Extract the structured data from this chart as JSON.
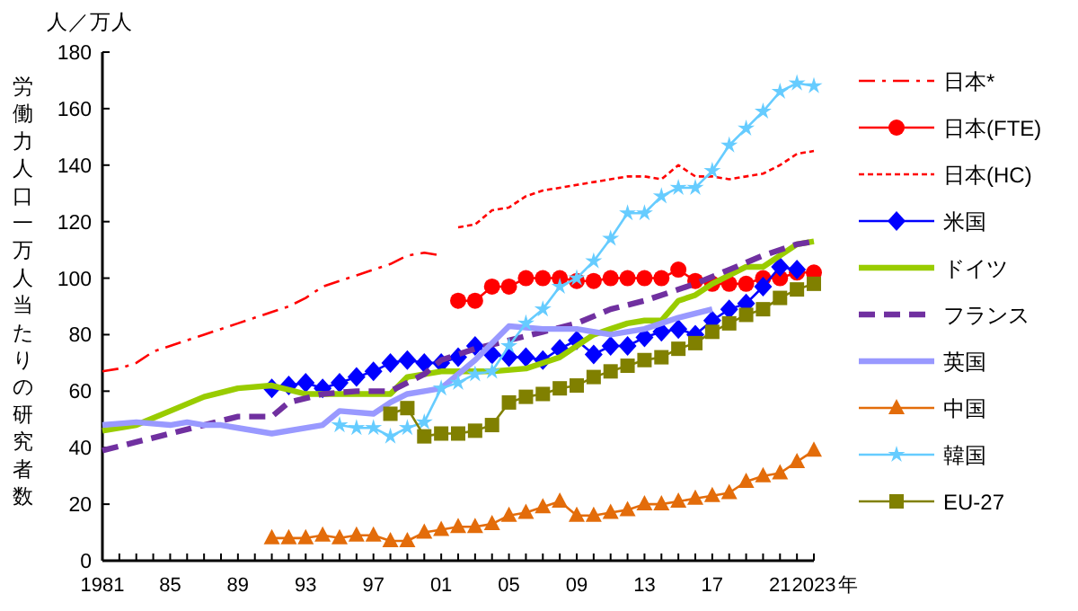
{
  "chart_data": {
    "type": "line",
    "ylabel": "労働力人口一万人当たりの研究者数",
    "annotations": [
      "人／万人"
    ],
    "xlim": [
      1981,
      2023
    ],
    "ylim": [
      0,
      180
    ],
    "yticks": [
      0,
      20,
      40,
      60,
      80,
      100,
      120,
      140,
      160,
      180
    ],
    "xticks": [
      1981,
      {
        "value": 1982,
        "label": null
      },
      {
        "value": 1983,
        "label": null
      },
      {
        "value": 1984,
        "label": null
      },
      {
        "value": 1985,
        "label": "85"
      },
      {
        "value": 1986,
        "label": null
      },
      {
        "value": 1987,
        "label": null
      },
      {
        "value": 1988,
        "label": null
      },
      {
        "value": 1989,
        "label": "89"
      },
      {
        "value": 1990,
        "label": null
      },
      {
        "value": 1991,
        "label": null
      },
      {
        "value": 1992,
        "label": null
      },
      {
        "value": 1993,
        "label": "93"
      },
      {
        "value": 1994,
        "label": null
      },
      {
        "value": 1995,
        "label": null
      },
      {
        "value": 1996,
        "label": null
      },
      {
        "value": 1997,
        "label": "97"
      },
      {
        "value": 1998,
        "label": null
      },
      {
        "value": 1999,
        "label": null
      },
      {
        "value": 2000,
        "label": null
      },
      {
        "value": 2001,
        "label": "01"
      },
      {
        "value": 2002,
        "label": null
      },
      {
        "value": 2003,
        "label": null
      },
      {
        "value": 2004,
        "label": null
      },
      {
        "value": 2005,
        "label": "05"
      },
      {
        "value": 2006,
        "label": null
      },
      {
        "value": 2007,
        "label": null
      },
      {
        "value": 2008,
        "label": null
      },
      {
        "value": 2009,
        "label": "09"
      },
      {
        "value": 2010,
        "label": null
      },
      {
        "value": 2011,
        "label": null
      },
      {
        "value": 2012,
        "label": null
      },
      {
        "value": 2013,
        "label": "13"
      },
      {
        "value": 2014,
        "label": null
      },
      {
        "value": 2015,
        "label": null
      },
      {
        "value": 2016,
        "label": null
      },
      {
        "value": 2017,
        "label": "17"
      },
      {
        "value": 2018,
        "label": null
      },
      {
        "value": 2019,
        "label": null
      },
      {
        "value": 2020,
        "label": null
      },
      {
        "value": 2021,
        "label": "21"
      },
      {
        "value": 2022,
        "label": null
      },
      2023
    ],
    "xlabel": "年",
    "grid": false,
    "legend": "right",
    "series": [
      {
        "name": "日本*",
        "color": "#ff0000",
        "marker": "none",
        "line_style": "dashdot",
        "x": [
          1981,
          1982,
          1983,
          1984,
          1985,
          1986,
          1987,
          1988,
          1989,
          1990,
          1991,
          1992,
          1993,
          1994,
          1995,
          1996,
          1997,
          1998,
          1999,
          2000,
          2001
        ],
        "values": [
          67,
          68,
          70,
          74,
          76,
          78,
          80,
          82,
          84,
          86,
          88,
          90,
          93,
          97,
          99,
          101,
          103,
          105,
          108,
          109,
          108
        ]
      },
      {
        "name": "日本(FTE)",
        "color": "#ff0000",
        "marker": "circle",
        "line_style": "solid",
        "x": [
          2002,
          2003,
          2004,
          2005,
          2006,
          2007,
          2008,
          2009,
          2010,
          2011,
          2012,
          2013,
          2014,
          2015,
          2016,
          2017,
          2018,
          2019,
          2020,
          2021,
          2022,
          2023
        ],
        "values": [
          92,
          92,
          97,
          97,
          100,
          100,
          100,
          99,
          99,
          100,
          100,
          100,
          100,
          103,
          99,
          98,
          98,
          98,
          100,
          100,
          102,
          102
        ]
      },
      {
        "name": "日本(HC)",
        "color": "#ff0000",
        "marker": "none",
        "line_style": "dotted",
        "x": [
          2002,
          2003,
          2004,
          2005,
          2006,
          2007,
          2008,
          2009,
          2010,
          2011,
          2012,
          2013,
          2014,
          2015,
          2016,
          2017,
          2018,
          2019,
          2020,
          2021,
          2022,
          2023
        ],
        "values": [
          118,
          119,
          124,
          125,
          129,
          131,
          132,
          133,
          134,
          135,
          136,
          136,
          135,
          140,
          136,
          136,
          135,
          136,
          137,
          140,
          144,
          145
        ]
      },
      {
        "name": "米国",
        "color": "#0000ff",
        "marker": "diamond",
        "line_style": "solid",
        "x": [
          1991,
          1992,
          1993,
          1994,
          1995,
          1996,
          1997,
          1998,
          1999,
          2000,
          2001,
          2002,
          2003,
          2004,
          2005,
          2006,
          2007,
          2008,
          2009,
          2010,
          2011,
          2012,
          2013,
          2014,
          2015,
          2016,
          2017,
          2018,
          2019,
          2020,
          2021,
          2022
        ],
        "values": [
          61,
          62,
          63,
          61,
          63,
          65,
          67,
          70,
          71,
          70,
          70,
          72,
          76,
          73,
          72,
          72,
          71,
          75,
          78,
          73,
          76,
          76,
          79,
          81,
          82,
          80,
          85,
          89,
          91,
          97,
          104,
          103
        ]
      },
      {
        "name": "ドイツ",
        "color": "#99cc00",
        "marker": "none",
        "line_style": "solid",
        "x": [
          1981,
          1983,
          1985,
          1987,
          1989,
          1991,
          1993,
          1996,
          1998,
          1999,
          2001,
          2004,
          2006,
          2008,
          2010,
          2011,
          2012,
          2013,
          2014,
          2015,
          2016,
          2017,
          2018,
          2019,
          2020,
          2021,
          2022,
          2023
        ],
        "values": [
          46,
          48,
          53,
          58,
          61,
          62,
          59,
          59,
          59,
          65,
          67,
          67,
          68,
          72,
          80,
          82,
          84,
          85,
          85,
          92,
          94,
          98,
          101,
          104,
          104,
          108,
          112,
          113
        ]
      },
      {
        "name": "フランス",
        "color": "#7030a0",
        "marker": "none",
        "line_style": "dashed",
        "x": [
          1981,
          1983,
          1985,
          1987,
          1989,
          1991,
          1992,
          1994,
          1996,
          1998,
          2000,
          2001,
          2003,
          2005,
          2007,
          2009,
          2011,
          2013,
          2014,
          2016,
          2018,
          2020,
          2022,
          2023
        ],
        "values": [
          39,
          42,
          45,
          48,
          51,
          51,
          56,
          59,
          60,
          60,
          66,
          71,
          75,
          78,
          81,
          84,
          89,
          92,
          94,
          98,
          103,
          108,
          112,
          113
        ]
      },
      {
        "name": "英国",
        "color": "#9999ff",
        "marker": "none",
        "line_style": "solid",
        "x": [
          1981,
          1983,
          1985,
          1986,
          1987,
          1988,
          1989,
          1991,
          1994,
          1995,
          1997,
          1998,
          1999,
          2000,
          2001,
          2003,
          2005,
          2007,
          2009,
          2011,
          2013,
          2015,
          2017
        ],
        "values": [
          48,
          49,
          48,
          49,
          48,
          48,
          47,
          45,
          48,
          53,
          52,
          56,
          59,
          60,
          61,
          71,
          83,
          82,
          82,
          80,
          82,
          86,
          89
        ]
      },
      {
        "name": "中国",
        "color": "#e36c0a",
        "marker": "triangle",
        "line_style": "solid",
        "x": [
          1991,
          1992,
          1993,
          1994,
          1995,
          1996,
          1997,
          1998,
          1999,
          2000,
          2001,
          2002,
          2003,
          2004,
          2005,
          2006,
          2007,
          2008,
          2009,
          2010,
          2011,
          2012,
          2013,
          2014,
          2015,
          2016,
          2017,
          2018,
          2019,
          2020,
          2021,
          2022,
          2023
        ],
        "values": [
          8,
          8,
          8,
          9,
          8,
          9,
          9,
          7,
          7,
          10,
          11,
          12,
          12,
          13,
          16,
          17,
          19,
          21,
          16,
          16,
          17,
          18,
          20,
          20,
          21,
          22,
          23,
          24,
          28,
          30,
          31,
          35,
          39
        ]
      },
      {
        "name": "韓国",
        "color": "#66ccff",
        "marker": "star",
        "line_style": "solid",
        "x": [
          1995,
          1996,
          1997,
          1998,
          1999,
          2000,
          2001,
          2002,
          2003,
          2004,
          2005,
          2006,
          2007,
          2008,
          2009,
          2010,
          2011,
          2012,
          2013,
          2014,
          2015,
          2016,
          2017,
          2018,
          2019,
          2020,
          2021,
          2022,
          2023
        ],
        "values": [
          48,
          47,
          47,
          44,
          47,
          49,
          61,
          63,
          66,
          67,
          76,
          84,
          89,
          97,
          100,
          106,
          114,
          123,
          123,
          129,
          132,
          132,
          138,
          147,
          153,
          159,
          166,
          169,
          168
        ]
      },
      {
        "name": "EU-27",
        "color": "#808000",
        "marker": "square",
        "line_style": "solid",
        "x": [
          1998,
          1999,
          2000,
          2001,
          2002,
          2003,
          2004,
          2005,
          2006,
          2007,
          2008,
          2009,
          2010,
          2011,
          2012,
          2013,
          2014,
          2015,
          2016,
          2017,
          2018,
          2019,
          2020,
          2021,
          2022,
          2023
        ],
        "values": [
          52,
          54,
          44,
          45,
          45,
          46,
          48,
          56,
          58,
          59,
          61,
          62,
          65,
          67,
          69,
          71,
          72,
          75,
          77,
          81,
          84,
          87,
          89,
          93,
          96,
          98
        ]
      }
    ]
  }
}
